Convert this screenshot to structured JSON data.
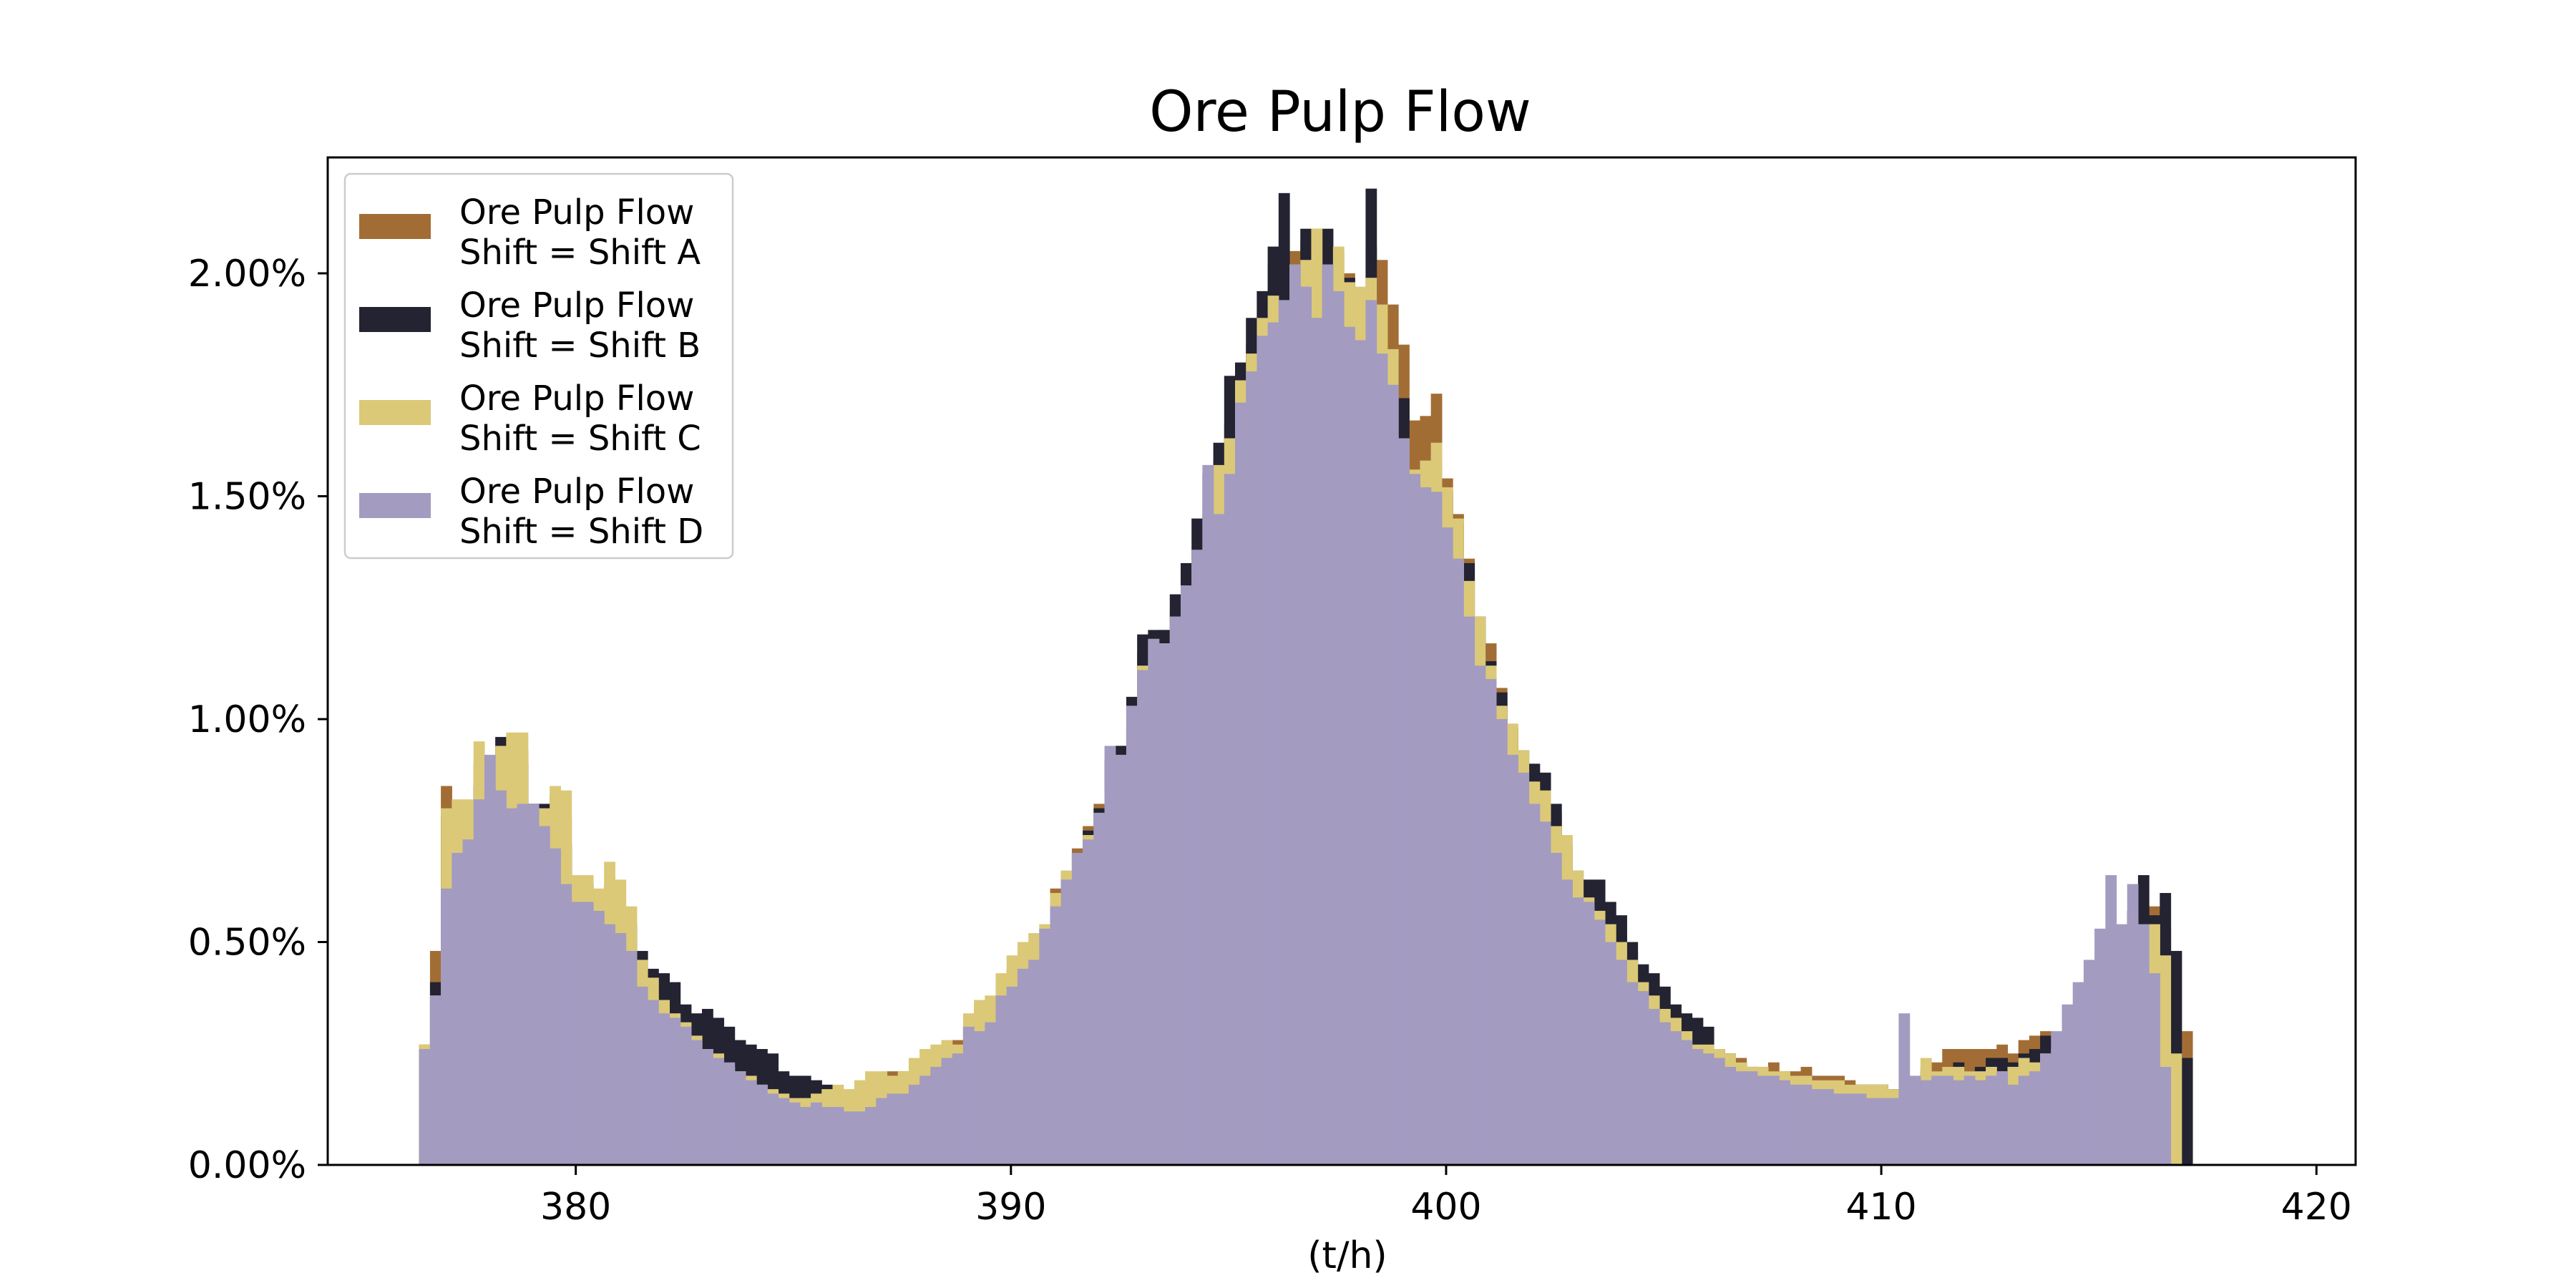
{
  "chart_data": {
    "type": "histogram",
    "title": "Ore Pulp Flow",
    "xlabel": "(t/h)",
    "ylabel": "",
    "xlim": [
      374.3,
      420.9
    ],
    "ylim": [
      0,
      0.0226
    ],
    "x_ticks": [
      380,
      390,
      400,
      410,
      420
    ],
    "x_tick_labels": [
      "380",
      "390",
      "400",
      "410",
      "420"
    ],
    "y_ticks": [
      0,
      0.005,
      0.01,
      0.015,
      0.02
    ],
    "y_tick_labels": [
      "0.00%",
      "0.50%",
      "1.00%",
      "1.50%",
      "2.00%"
    ],
    "grid": false,
    "legend_placement": "top-left",
    "stacked": false,
    "bin_start": 376.4,
    "bin_width": 0.25,
    "series": [
      {
        "name": "Ore Pulp Flow\nShift = Shift A",
        "color": "#a26d35",
        "values": [
          0.0027,
          0.0048,
          0.0085,
          0.0071,
          0.008,
          0.009,
          0.0082,
          0.0084,
          0.0092,
          0.0093,
          0.0081,
          0.008,
          0.0083,
          0.0078,
          0.0064,
          0.0063,
          0.0059,
          0.0063,
          0.0057,
          0.0054,
          0.0044,
          0.0041,
          0.0037,
          0.0034,
          0.0032,
          0.003,
          0.0029,
          0.0027,
          0.0026,
          0.0024,
          0.0022,
          0.0019,
          0.0018,
          0.0017,
          0.0017,
          0.0016,
          0.0015,
          0.0015,
          0.0016,
          0.0016,
          0.0017,
          0.0017,
          0.002,
          0.0021,
          0.0021,
          0.0021,
          0.0022,
          0.0024,
          0.0026,
          0.0028,
          0.0031,
          0.0035,
          0.0037,
          0.0042,
          0.0044,
          0.0047,
          0.0048,
          0.0052,
          0.0062,
          0.0066,
          0.0071,
          0.0076,
          0.0081,
          0.0085,
          0.0094,
          0.0098,
          0.0115,
          0.0117,
          0.012,
          0.0124,
          0.0127,
          0.0134,
          0.0146,
          0.0158,
          0.0166,
          0.0178,
          0.0184,
          0.0196,
          0.0202,
          0.0199,
          0.0205,
          0.0207,
          0.021,
          0.0204,
          0.0205,
          0.02,
          0.0196,
          0.0206,
          0.0203,
          0.0193,
          0.0184,
          0.0167,
          0.0168,
          0.0173,
          0.0154,
          0.0146,
          0.0136,
          0.0118,
          0.0117,
          0.0107,
          0.0097,
          0.0093,
          0.0088,
          0.0086,
          0.0079,
          0.0071,
          0.0064,
          0.0063,
          0.0059,
          0.0056,
          0.0052,
          0.0048,
          0.0042,
          0.004,
          0.0036,
          0.0033,
          0.0031,
          0.0029,
          0.0026,
          0.0025,
          0.0024,
          0.0024,
          0.0022,
          0.0022,
          0.0023,
          0.0021,
          0.0021,
          0.0022,
          0.002,
          0.002,
          0.002,
          0.0019,
          0.0018,
          0.0018,
          0.0018,
          0.0017,
          0.0017,
          0.0016,
          0.0022,
          0.0023,
          0.0026,
          0.0026,
          0.0026,
          0.0026,
          0.0026,
          0.0027,
          0.0025,
          0.0028,
          0.0029,
          0.003,
          0.0028,
          0.0031,
          0.0035,
          0.0039,
          0.0043,
          0.0047,
          0.0051,
          0.0056,
          0.0058,
          0.0058,
          0.0053,
          0.0048,
          0.003
        ]
      },
      {
        "name": "Ore Pulp Flow\nShift = Shift B",
        "color": "#232332",
        "values": [
          0.0026,
          0.0041,
          0.0078,
          0.0075,
          0.008,
          0.0085,
          0.009,
          0.0096,
          0.0092,
          0.009,
          0.0081,
          0.0081,
          0.0076,
          0.0072,
          0.0064,
          0.0063,
          0.0059,
          0.0059,
          0.0057,
          0.0054,
          0.0048,
          0.0044,
          0.0043,
          0.0041,
          0.0036,
          0.0034,
          0.0035,
          0.0033,
          0.0031,
          0.0028,
          0.0027,
          0.0026,
          0.0025,
          0.0021,
          0.002,
          0.002,
          0.0019,
          0.0018,
          0.0016,
          0.0015,
          0.0015,
          0.0017,
          0.0017,
          0.0016,
          0.0017,
          0.0018,
          0.0019,
          0.002,
          0.0022,
          0.0024,
          0.0027,
          0.003,
          0.0032,
          0.0036,
          0.0039,
          0.0043,
          0.0047,
          0.0051,
          0.0059,
          0.0064,
          0.007,
          0.0075,
          0.008,
          0.0091,
          0.0094,
          0.0105,
          0.0119,
          0.012,
          0.012,
          0.0128,
          0.0135,
          0.0145,
          0.0155,
          0.0162,
          0.0177,
          0.018,
          0.019,
          0.0196,
          0.0206,
          0.0218,
          0.0202,
          0.021,
          0.0209,
          0.021,
          0.0195,
          0.0199,
          0.0188,
          0.0219,
          0.0192,
          0.0181,
          0.0172,
          0.0156,
          0.0155,
          0.0158,
          0.0151,
          0.0144,
          0.0135,
          0.0123,
          0.0113,
          0.0106,
          0.0098,
          0.0093,
          0.009,
          0.0088,
          0.0081,
          0.0072,
          0.0066,
          0.0064,
          0.0064,
          0.0059,
          0.0056,
          0.005,
          0.0045,
          0.0043,
          0.004,
          0.0036,
          0.0034,
          0.0033,
          0.0031,
          0.0026,
          0.0025,
          0.0023,
          0.0022,
          0.0021,
          0.0021,
          0.002,
          0.002,
          0.0019,
          0.0019,
          0.0019,
          0.0019,
          0.0018,
          0.0018,
          0.0018,
          0.0018,
          0.0017,
          0.0017,
          0.0016,
          0.0021,
          0.0021,
          0.0022,
          0.0023,
          0.0021,
          0.0022,
          0.0024,
          0.0024,
          0.0023,
          0.0025,
          0.0026,
          0.0029,
          0.0027,
          0.003,
          0.0033,
          0.0036,
          0.004,
          0.0046,
          0.0051,
          0.0057,
          0.0065,
          0.0056,
          0.0061,
          0.0048,
          0.0024
        ]
      },
      {
        "name": "Ore Pulp Flow\nShift = Shift C",
        "color": "#dbc978",
        "values": [
          0.0027,
          0.0038,
          0.008,
          0.0082,
          0.0082,
          0.0095,
          0.009,
          0.0094,
          0.0097,
          0.0097,
          0.008,
          0.008,
          0.0085,
          0.0084,
          0.0065,
          0.0065,
          0.0062,
          0.0068,
          0.0064,
          0.0058,
          0.0046,
          0.0042,
          0.0037,
          0.0034,
          0.0032,
          0.0029,
          0.0026,
          0.0025,
          0.0022,
          0.0021,
          0.002,
          0.0018,
          0.0017,
          0.0016,
          0.0015,
          0.0015,
          0.0016,
          0.0017,
          0.0018,
          0.0017,
          0.0019,
          0.0021,
          0.0021,
          0.002,
          0.0021,
          0.0024,
          0.0026,
          0.0027,
          0.0028,
          0.0027,
          0.0034,
          0.0037,
          0.0038,
          0.0043,
          0.0047,
          0.005,
          0.0052,
          0.0054,
          0.0061,
          0.0066,
          0.007,
          0.0074,
          0.0078,
          0.0084,
          0.009,
          0.0099,
          0.0112,
          0.0118,
          0.0117,
          0.0123,
          0.0127,
          0.0136,
          0.0147,
          0.0157,
          0.0163,
          0.0176,
          0.0182,
          0.019,
          0.0195,
          0.0188,
          0.0202,
          0.0203,
          0.021,
          0.02,
          0.0206,
          0.0198,
          0.0197,
          0.0199,
          0.0193,
          0.0183,
          0.0163,
          0.0156,
          0.0158,
          0.0162,
          0.0152,
          0.0145,
          0.0131,
          0.0123,
          0.0112,
          0.0103,
          0.0099,
          0.0093,
          0.0086,
          0.0084,
          0.0076,
          0.0074,
          0.0066,
          0.006,
          0.0057,
          0.0054,
          0.005,
          0.0046,
          0.0041,
          0.0038,
          0.0035,
          0.0033,
          0.003,
          0.0027,
          0.0027,
          0.0026,
          0.0025,
          0.0023,
          0.0022,
          0.0022,
          0.0021,
          0.0021,
          0.002,
          0.002,
          0.0019,
          0.0019,
          0.0019,
          0.0018,
          0.0018,
          0.0018,
          0.0018,
          0.0017,
          0.0017,
          0.0016,
          0.0024,
          0.0021,
          0.0022,
          0.0022,
          0.0021,
          0.0021,
          0.0022,
          0.0021,
          0.0022,
          0.0024,
          0.0023,
          0.0025,
          0.0026,
          0.0029,
          0.0032,
          0.0036,
          0.0041,
          0.0045,
          0.005,
          0.0056,
          0.0053,
          0.0054,
          0.0047,
          0.0025
        ]
      },
      {
        "name": "Ore Pulp Flow\nShift = Shift D",
        "color": "#a39bc0",
        "values": [
          0.0026,
          0.0038,
          0.0062,
          0.007,
          0.0073,
          0.0082,
          0.0092,
          0.0084,
          0.008,
          0.0081,
          0.0081,
          0.0076,
          0.0071,
          0.0063,
          0.0059,
          0.0059,
          0.0057,
          0.0054,
          0.0052,
          0.0048,
          0.004,
          0.0037,
          0.0034,
          0.0033,
          0.0031,
          0.0028,
          0.0026,
          0.0024,
          0.0023,
          0.0021,
          0.0019,
          0.0018,
          0.0016,
          0.0015,
          0.0014,
          0.0013,
          0.0014,
          0.0013,
          0.0013,
          0.0012,
          0.0012,
          0.0013,
          0.0015,
          0.0016,
          0.0016,
          0.0018,
          0.002,
          0.0022,
          0.0024,
          0.0025,
          0.0031,
          0.003,
          0.0032,
          0.0038,
          0.004,
          0.0044,
          0.0046,
          0.0053,
          0.0058,
          0.0064,
          0.007,
          0.0073,
          0.0079,
          0.0094,
          0.0092,
          0.0103,
          0.0111,
          0.0118,
          0.0117,
          0.0123,
          0.013,
          0.0138,
          0.0157,
          0.0146,
          0.0155,
          0.0171,
          0.0178,
          0.0186,
          0.0189,
          0.0194,
          0.0202,
          0.0197,
          0.019,
          0.0202,
          0.0196,
          0.0188,
          0.0185,
          0.0194,
          0.0182,
          0.0175,
          0.0163,
          0.0155,
          0.0152,
          0.0151,
          0.0143,
          0.0136,
          0.0123,
          0.0112,
          0.0109,
          0.01,
          0.0092,
          0.0088,
          0.0081,
          0.0077,
          0.007,
          0.0064,
          0.006,
          0.0059,
          0.0055,
          0.005,
          0.0046,
          0.0041,
          0.0039,
          0.0035,
          0.0032,
          0.003,
          0.0028,
          0.0026,
          0.0025,
          0.0024,
          0.0022,
          0.0021,
          0.0021,
          0.002,
          0.002,
          0.0019,
          0.0018,
          0.0018,
          0.0017,
          0.0017,
          0.0016,
          0.0016,
          0.0016,
          0.0015,
          0.0015,
          0.0015,
          0.0034,
          0.002,
          0.0019,
          0.002,
          0.002,
          0.0019,
          0.002,
          0.0019,
          0.002,
          0.0021,
          0.0018,
          0.002,
          0.0021,
          0.0025,
          0.003,
          0.0036,
          0.0041,
          0.0046,
          0.0053,
          0.0065,
          0.0054,
          0.0063,
          0.0054,
          0.0043,
          0.0022
        ]
      }
    ]
  }
}
